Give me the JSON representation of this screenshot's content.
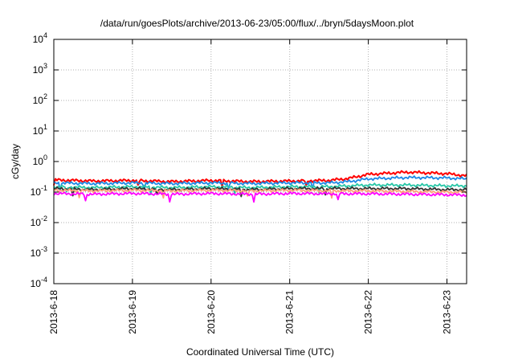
{
  "chart_data": {
    "type": "line",
    "title": "/data/run/goesPlots/archive/2013-06-23/05:00/flux/../bryn/5daysMoon.plot",
    "xlabel": "Coordinated Universal Time (UTC)",
    "ylabel": "cGy/day",
    "yscale": "log",
    "ylim": [
      0.0001,
      10000
    ],
    "xlim": [
      "2013-06-18",
      "2013-06-23 06:00"
    ],
    "grid": true,
    "x_ticks": [
      "2013-6-18",
      "2013-6-19",
      "2013-6-20",
      "2013-6-21",
      "2013-6-22",
      "2013-6-23"
    ],
    "y_ticks": [
      {
        "value": 0.0001,
        "base": "10",
        "exp": "-4"
      },
      {
        "value": 0.001,
        "base": "10",
        "exp": "-3"
      },
      {
        "value": 0.01,
        "base": "10",
        "exp": "-2"
      },
      {
        "value": 0.1,
        "base": "10",
        "exp": "-1"
      },
      {
        "value": 1,
        "base": "10",
        "exp": "0"
      },
      {
        "value": 10,
        "base": "10",
        "exp": "1"
      },
      {
        "value": 100,
        "base": "10",
        "exp": "2"
      },
      {
        "value": 1000,
        "base": "10",
        "exp": "3"
      },
      {
        "value": 10000,
        "base": "10",
        "exp": "4"
      }
    ],
    "series_shape": {
      "x": [
        "2013-06-18 00:00",
        "2013-06-18 12:00",
        "2013-06-19 00:00",
        "2013-06-19 12:00",
        "2013-06-20 00:00",
        "2013-06-20 12:00",
        "2013-06-21 00:00",
        "2013-06-21 12:00",
        "2013-06-21 18:00",
        "2013-06-22 00:00",
        "2013-06-22 12:00",
        "2013-06-23 00:00",
        "2013-06-23 06:00"
      ]
    },
    "series": [
      {
        "color": "#ff0000",
        "values": [
          0.25,
          0.23,
          0.24,
          0.22,
          0.24,
          0.22,
          0.23,
          0.24,
          0.28,
          0.38,
          0.45,
          0.4,
          0.34
        ]
      },
      {
        "color": "#1e88e5",
        "values": [
          0.2,
          0.19,
          0.2,
          0.19,
          0.2,
          0.19,
          0.2,
          0.2,
          0.22,
          0.27,
          0.3,
          0.29,
          0.27
        ]
      },
      {
        "color": "#26c6a6",
        "values": [
          0.15,
          0.14,
          0.15,
          0.14,
          0.15,
          0.14,
          0.15,
          0.15,
          0.16,
          0.17,
          0.17,
          0.16,
          0.16
        ]
      },
      {
        "color": "#333333",
        "values": [
          0.13,
          0.12,
          0.13,
          0.12,
          0.13,
          0.12,
          0.13,
          0.13,
          0.13,
          0.13,
          0.13,
          0.12,
          0.12
        ]
      },
      {
        "color": "#ffa07a",
        "values": [
          0.115,
          0.11,
          0.115,
          0.11,
          0.115,
          0.11,
          0.115,
          0.11,
          0.11,
          0.11,
          0.105,
          0.1,
          0.1
        ]
      },
      {
        "color": "#ff00ff",
        "values": [
          0.09,
          0.085,
          0.09,
          0.085,
          0.09,
          0.085,
          0.09,
          0.088,
          0.088,
          0.088,
          0.085,
          0.082,
          0.08
        ]
      }
    ]
  }
}
